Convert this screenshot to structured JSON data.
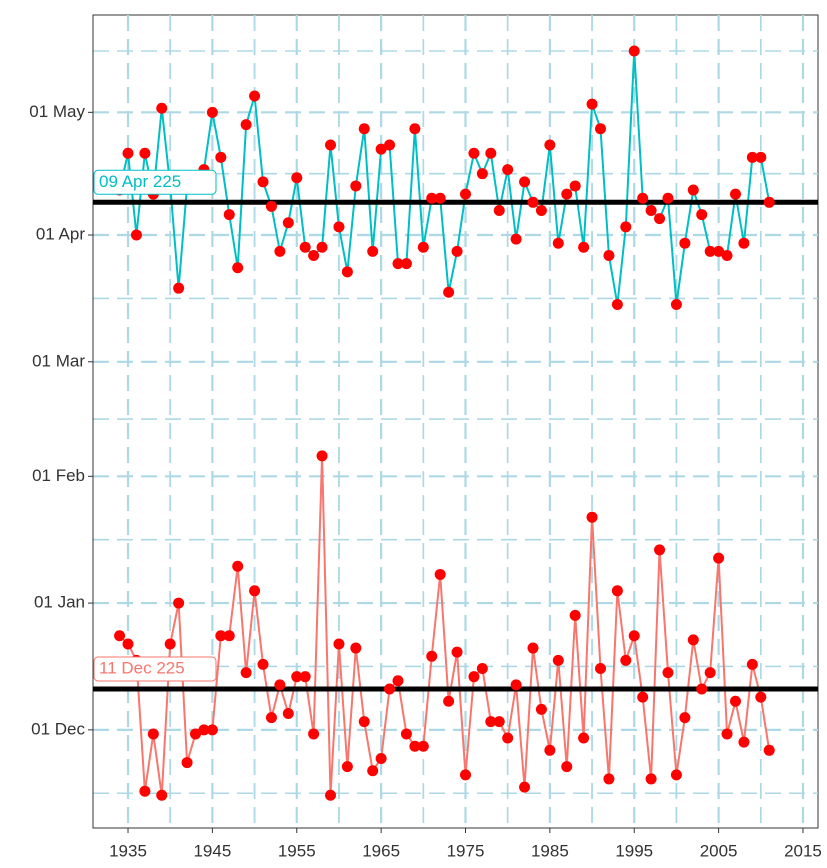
{
  "chart_data": {
    "type": "line",
    "x": [
      1934,
      1935,
      1936,
      1937,
      1938,
      1939,
      1940,
      1941,
      1942,
      1943,
      1944,
      1945,
      1946,
      1947,
      1948,
      1949,
      1950,
      1951,
      1952,
      1953,
      1954,
      1955,
      1956,
      1957,
      1958,
      1959,
      1960,
      1961,
      1962,
      1963,
      1964,
      1965,
      1966,
      1967,
      1968,
      1969,
      1970,
      1971,
      1972,
      1973,
      1974,
      1975,
      1976,
      1977,
      1978,
      1979,
      1980,
      1981,
      1982,
      1983,
      1984,
      1985,
      1986,
      1987,
      1988,
      1989,
      1990,
      1991,
      1992,
      1993,
      1994,
      1995,
      1996,
      1997,
      1998,
      1999,
      2000,
      2001,
      2002,
      2003,
      2004,
      2005,
      2006,
      2007,
      2008,
      2009,
      2010,
      2011
    ],
    "series": [
      {
        "color": "#00bfc4",
        "marker_color": "#ff0000",
        "values": [
          132,
          141,
          121,
          141,
          131,
          152,
          133,
          108,
          133,
          133,
          137,
          151,
          140,
          126,
          113,
          148,
          155,
          134,
          128,
          117,
          124,
          135,
          118,
          116,
          118,
          143,
          123,
          112,
          133,
          147,
          117,
          142,
          143,
          114,
          114,
          147,
          118,
          130,
          130,
          107,
          117,
          131,
          141,
          136,
          141,
          127,
          137,
          120,
          134,
          129,
          127,
          143,
          119,
          131,
          133,
          118,
          153,
          147,
          116,
          104,
          123,
          166,
          130,
          127,
          125,
          130,
          104,
          119,
          132,
          126,
          117,
          117,
          116,
          131,
          119,
          140,
          140,
          129
        ]
      },
      {
        "color": "#f8766d",
        "marker_color": "#ff0000",
        "values": [
          23,
          21,
          17,
          -15,
          -1,
          -16,
          21,
          31,
          -8,
          -1,
          0,
          0,
          23,
          23,
          40,
          14,
          34,
          16,
          3,
          11,
          4,
          13,
          13,
          -1,
          67,
          -16,
          21,
          -9,
          20,
          2,
          -10,
          -7,
          10,
          12,
          -1,
          -4,
          -4,
          18,
          38,
          7,
          19,
          -11,
          13,
          15,
          2,
          2,
          -2,
          11,
          -14,
          20,
          5,
          -5,
          17,
          -9,
          28,
          -2,
          52,
          15,
          -12,
          34,
          17,
          23,
          8,
          -12,
          44,
          14,
          -11,
          3,
          22,
          10,
          14,
          42,
          -1,
          7,
          -3,
          16,
          8,
          -5
        ]
      }
    ],
    "hlines": [
      {
        "value": 129,
        "label": "09 Apr 225",
        "color": "#00bfc4"
      },
      {
        "value": 10,
        "label": "11 Dec 225",
        "color": "#f8766d"
      }
    ],
    "xlim": [
      1930.85,
      2016.78
    ],
    "xticks": [
      1935,
      1945,
      1955,
      1965,
      1975,
      1985,
      1995,
      2005,
      2015
    ],
    "ylim": [
      -24.0,
      174.8
    ],
    "yticks": [
      {
        "value": 0,
        "label": "01 Dec"
      },
      {
        "value": 31,
        "label": "01 Jan"
      },
      {
        "value": 62,
        "label": "01 Feb"
      },
      {
        "value": 90,
        "label": "01 Mar"
      },
      {
        "value": 121,
        "label": "01 Apr"
      },
      {
        "value": 151,
        "label": "01 May"
      }
    ],
    "grid": true
  }
}
